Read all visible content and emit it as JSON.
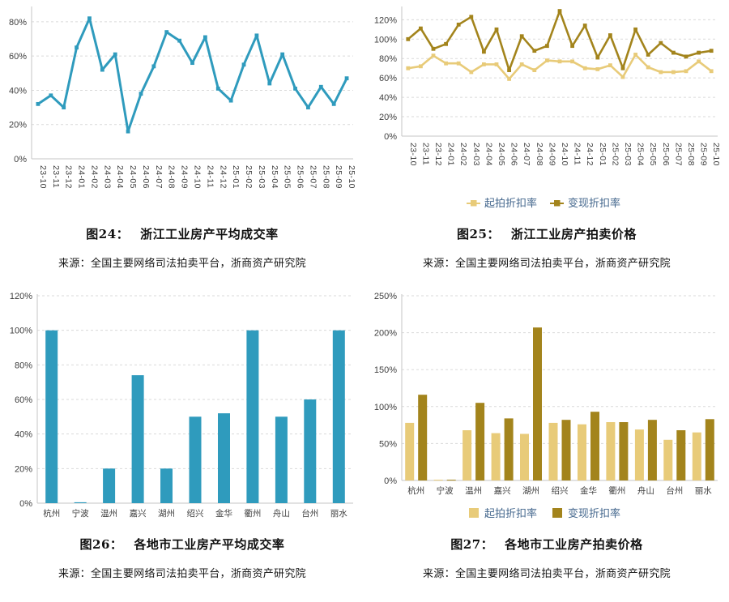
{
  "colors": {
    "teal": "#2f9bbd",
    "light_gold": "#e8cb79",
    "dark_gold": "#a3841c",
    "axis_text": "#3f3f3f",
    "grid_line": "#dadada",
    "axis_line": "#c6c6c6",
    "legend_text": "#44678d",
    "caption_text": "#111111"
  },
  "chart_data": [
    {
      "id": "fig24",
      "type": "line",
      "caption_label": "图24：",
      "caption_title": "浙江工业房产平均成交率",
      "source": "来源：全国主要网络司法拍卖平台，浙商资产研究院",
      "categories": [
        "23-10",
        "23-11",
        "23-12",
        "24-01",
        "24-02",
        "24-03",
        "24-04",
        "24-05",
        "24-06",
        "24-07",
        "24-08",
        "24-09",
        "24-10",
        "24-11",
        "24-12",
        "25-01",
        "25-02",
        "25-03",
        "25-04",
        "25-05",
        "25-06",
        "25-07",
        "25-08",
        "25-09",
        "25-10"
      ],
      "series": [
        {
          "name": "",
          "color": "#2f9bbd",
          "values": [
            32,
            37,
            30,
            65,
            82,
            52,
            61,
            16,
            38,
            54,
            74,
            69,
            56,
            71,
            41,
            34,
            55,
            72,
            44,
            61,
            41,
            30,
            42,
            32,
            47
          ]
        }
      ],
      "ylim": [
        0,
        88
      ],
      "yticks": [
        0,
        20,
        40,
        60,
        80
      ],
      "ytick_suffix": "%",
      "grid": true,
      "x_label_rotate": true,
      "legend_position": null
    },
    {
      "id": "fig25",
      "type": "line",
      "caption_label": "图25：",
      "caption_title": "浙江工业房产拍卖价格",
      "source": "来源：全国主要网络司法拍卖平台，浙商资产研究院",
      "categories": [
        "23-10",
        "23-11",
        "23-12",
        "24-01",
        "24-02",
        "24-03",
        "24-04",
        "24-05",
        "24-06",
        "24-07",
        "24-08",
        "24-09",
        "24-10",
        "24-11",
        "24-12",
        "25-01",
        "25-02",
        "25-03",
        "25-04",
        "25-05",
        "25-06",
        "25-07",
        "25-08",
        "25-09",
        "25-10"
      ],
      "series": [
        {
          "name": "起拍折扣率",
          "color": "#e8cb79",
          "values": [
            70,
            72,
            83,
            75,
            75,
            66,
            74,
            74,
            59,
            74,
            68,
            78,
            77,
            77,
            70,
            69,
            73,
            61,
            84,
            71,
            66,
            66,
            67,
            77,
            67
          ]
        },
        {
          "name": "变现折扣率",
          "color": "#a3841c",
          "values": [
            100,
            111,
            90,
            95,
            115,
            123,
            87,
            110,
            68,
            103,
            88,
            93,
            129,
            93,
            114,
            81,
            104,
            70,
            110,
            84,
            96,
            86,
            82,
            86,
            88
          ]
        }
      ],
      "ylim": [
        0,
        132
      ],
      "yticks": [
        0,
        20,
        40,
        60,
        80,
        100,
        120
      ],
      "ytick_suffix": "%",
      "grid": true,
      "x_label_rotate": true,
      "legend_position": "bottom"
    },
    {
      "id": "fig26",
      "type": "bar",
      "caption_label": "图26：",
      "caption_title": "各地市工业房产平均成交率",
      "source": "来源：全国主要网络司法拍卖平台，浙商资产研究院",
      "categories": [
        "杭州",
        "宁波",
        "温州",
        "嘉兴",
        "湖州",
        "绍兴",
        "金华",
        "衢州",
        "舟山",
        "台州",
        "丽水"
      ],
      "series": [
        {
          "name": "",
          "color": "#2f9bbd",
          "values": [
            100,
            0.5,
            20,
            74,
            20,
            50,
            52,
            100,
            50,
            60,
            100
          ]
        }
      ],
      "ylim": [
        0,
        120
      ],
      "yticks": [
        0,
        20,
        40,
        60,
        80,
        100,
        120
      ],
      "ytick_suffix": "%",
      "grid": true,
      "x_label_rotate": false,
      "legend_position": null
    },
    {
      "id": "fig27",
      "type": "bar",
      "caption_label": "图27：",
      "caption_title": "各地市工业房产拍卖价格",
      "source": "来源：全国主要网络司法拍卖平台，浙商资产研究院",
      "categories": [
        "杭州",
        "宁波",
        "温州",
        "嘉兴",
        "湖州",
        "绍兴",
        "金华",
        "衢州",
        "舟山",
        "台州",
        "丽水"
      ],
      "series": [
        {
          "name": "起拍折扣率",
          "color": "#e8cb79",
          "values": [
            78,
            1,
            68,
            64,
            63,
            78,
            76,
            79,
            69,
            55,
            65
          ]
        },
        {
          "name": "变现折扣率",
          "color": "#a3841c",
          "values": [
            116,
            1,
            105,
            84,
            207,
            82,
            93,
            79,
            82,
            68,
            83
          ]
        }
      ],
      "ylim": [
        0,
        250
      ],
      "yticks": [
        0,
        50,
        100,
        150,
        200,
        250
      ],
      "ytick_suffix": "%",
      "grid": true,
      "x_label_rotate": false,
      "legend_position": "bottom"
    }
  ]
}
